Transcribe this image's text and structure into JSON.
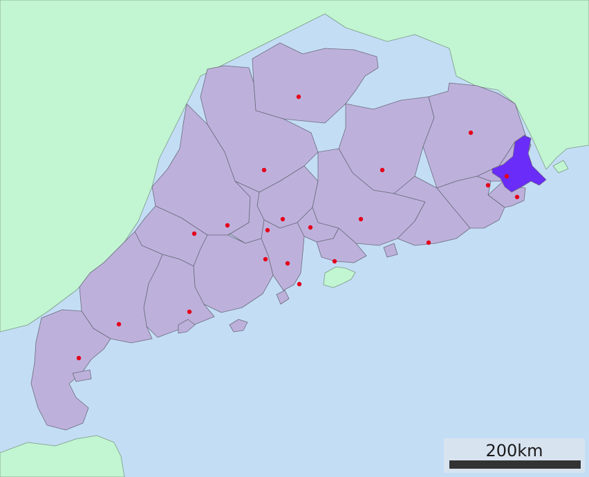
{
  "colors": {
    "sea": "#c3ddf5",
    "other_land": "#c2f5d2",
    "province": "#bdb1dc",
    "highlight": "#6a2cf8",
    "city_dot": "#e5001a"
  },
  "map": {
    "highlighted_region": "shantou-city",
    "city_count": 21
  },
  "scale_bar": {
    "label": "200km"
  }
}
